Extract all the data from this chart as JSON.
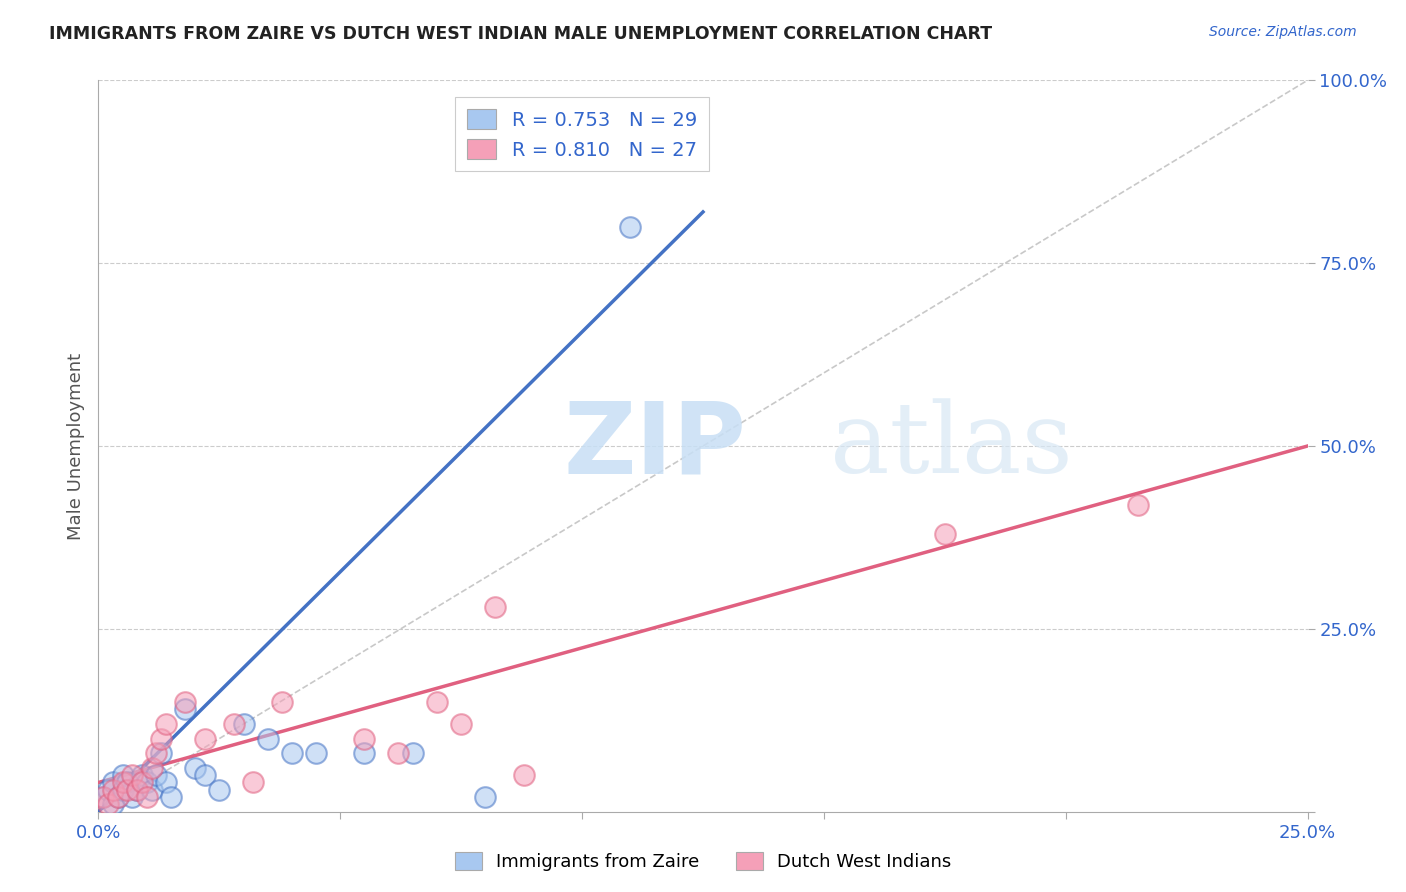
{
  "title": "IMMIGRANTS FROM ZAIRE VS DUTCH WEST INDIAN MALE UNEMPLOYMENT CORRELATION CHART",
  "source": "Source: ZipAtlas.com",
  "ylabel": "Male Unemployment",
  "xlim": [
    0.0,
    0.25
  ],
  "ylim": [
    0.0,
    1.0
  ],
  "xticks": [
    0.0,
    0.05,
    0.1,
    0.15,
    0.2,
    0.25
  ],
  "xtick_labels": [
    "0.0%",
    "",
    "",
    "",
    "",
    "25.0%"
  ],
  "yticks": [
    0.0,
    0.25,
    0.5,
    0.75,
    1.0
  ],
  "ytick_labels": [
    "",
    "25.0%",
    "50.0%",
    "75.0%",
    "100.0%"
  ],
  "watermark_zip": "ZIP",
  "watermark_atlas": "atlas",
  "legend1_label": "R = 0.753   N = 29",
  "legend2_label": "R = 0.810   N = 27",
  "legend1_series": "Immigrants from Zaire",
  "legend2_series": "Dutch West Indians",
  "color_blue": "#A8C8F0",
  "color_pink": "#F5A0B8",
  "color_blue_line": "#4472C4",
  "color_pink_line": "#E06080",
  "color_diag": "#BBBBBB",
  "blue_scatter_x": [
    0.001,
    0.002,
    0.003,
    0.003,
    0.004,
    0.005,
    0.005,
    0.006,
    0.007,
    0.008,
    0.009,
    0.01,
    0.011,
    0.012,
    0.013,
    0.014,
    0.015,
    0.018,
    0.02,
    0.022,
    0.025,
    0.03,
    0.035,
    0.04,
    0.045,
    0.055,
    0.065,
    0.08,
    0.11
  ],
  "blue_scatter_y": [
    0.02,
    0.03,
    0.01,
    0.04,
    0.02,
    0.03,
    0.05,
    0.04,
    0.02,
    0.03,
    0.05,
    0.04,
    0.03,
    0.05,
    0.08,
    0.04,
    0.02,
    0.14,
    0.06,
    0.05,
    0.03,
    0.12,
    0.1,
    0.08,
    0.08,
    0.08,
    0.08,
    0.02,
    0.8
  ],
  "pink_scatter_x": [
    0.001,
    0.002,
    0.003,
    0.004,
    0.005,
    0.006,
    0.007,
    0.008,
    0.009,
    0.01,
    0.011,
    0.012,
    0.013,
    0.014,
    0.018,
    0.022,
    0.028,
    0.032,
    0.038,
    0.055,
    0.062,
    0.07,
    0.075,
    0.082,
    0.088,
    0.175,
    0.215
  ],
  "pink_scatter_y": [
    0.02,
    0.01,
    0.03,
    0.02,
    0.04,
    0.03,
    0.05,
    0.03,
    0.04,
    0.02,
    0.06,
    0.08,
    0.1,
    0.12,
    0.15,
    0.1,
    0.12,
    0.04,
    0.15,
    0.1,
    0.08,
    0.15,
    0.12,
    0.28,
    0.05,
    0.38,
    0.42
  ],
  "blue_line_x": [
    0.0,
    0.125
  ],
  "blue_line_y": [
    0.0,
    0.82
  ],
  "pink_line_x": [
    0.0,
    0.25
  ],
  "pink_line_y": [
    0.04,
    0.5
  ]
}
